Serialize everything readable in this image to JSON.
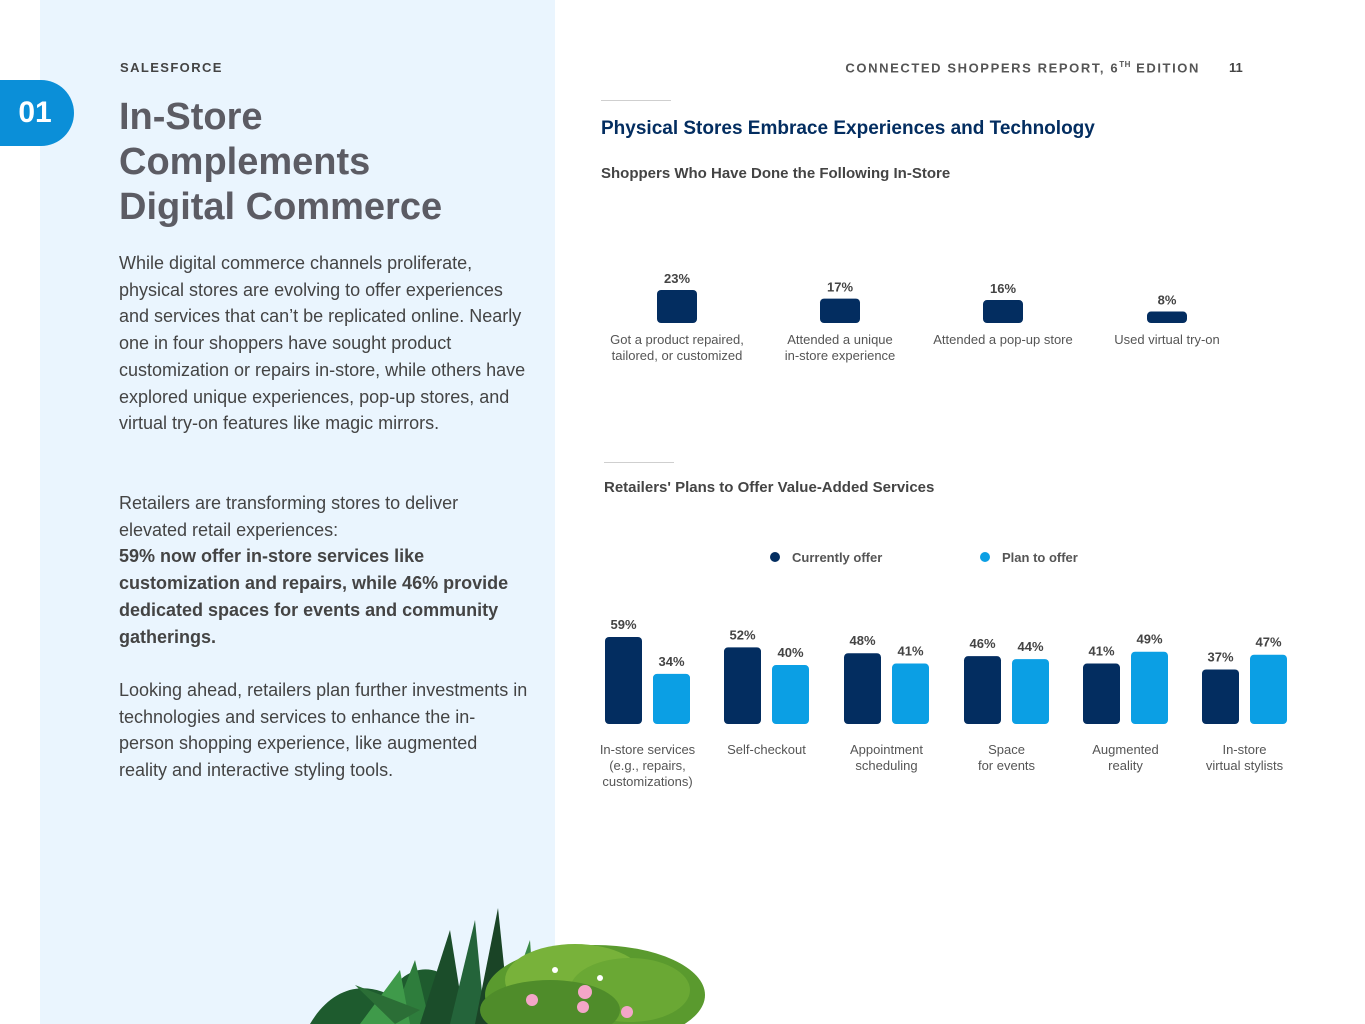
{
  "header": {
    "brand": "SALESFORCE",
    "report_title_main": "CONNECTED SHOPPERS REPORT, 6",
    "report_title_sup": "TH",
    "report_title_end": " EDITION",
    "page_number": "11",
    "section_number": "01"
  },
  "left": {
    "heading": [
      "In-Store",
      "Complements",
      "Digital Commerce"
    ],
    "para1": "While digital commerce channels proliferate, physical stores are evolving to offer experiences and services that can’t be replicated online. Nearly one in four shoppers have sought product customization or repairs in-store, while others have explored unique experiences, pop-up stores, and virtual try-on features like magic mirrors.",
    "para2_intro": "Retailers are transforming stores to deliver elevated retail experiences:",
    "para2_bold": "59% now offer in-store services like customization and repairs, while 46% provide dedicated spaces for events and community gatherings.",
    "para3": "Looking ahead, retailers plan further investments in technologies and services to enhance the in-person shopping experience, like augmented reality and interactive styling tools."
  },
  "charts_header": {
    "title": "Physical Stores Embrace Experiences and Technology"
  },
  "colors": {
    "navy": "#032d60",
    "blue": "#0b9fe4",
    "badge": "#0b8fd8",
    "panel": "#eaf5fe"
  },
  "chart_data": [
    {
      "type": "bar",
      "subtitle": "Shoppers Who Have Done the Following In-Store",
      "categories": [
        [
          "Got a product repaired,",
          "tailored, or customized"
        ],
        [
          "Attended a unique",
          "in-store experience"
        ],
        [
          "Attended a pop-up store"
        ],
        [
          "Used virtual try-on"
        ]
      ],
      "values": [
        23,
        17,
        16,
        8
      ],
      "value_labels": [
        "23%",
        "17%",
        "16%",
        "8%"
      ],
      "unit": "%",
      "grid": false,
      "legend": "none"
    },
    {
      "type": "bar",
      "subtitle": "Retailers' Plans to Offer Value-Added Services",
      "categories": [
        [
          "In-store services",
          "(e.g., repairs,",
          "customizations)"
        ],
        [
          "Self-checkout"
        ],
        [
          "Appointment",
          "scheduling"
        ],
        [
          "Space",
          "for events"
        ],
        [
          "Augmented",
          "reality"
        ],
        [
          "In-store",
          "virtual stylists"
        ]
      ],
      "series": [
        {
          "name": "Currently offer",
          "values": [
            59,
            52,
            48,
            46,
            41,
            37
          ],
          "labels": [
            "59%",
            "52%",
            "48%",
            "46%",
            "41%",
            "37%"
          ]
        },
        {
          "name": "Plan to offer",
          "values": [
            34,
            40,
            41,
            44,
            49,
            47
          ],
          "labels": [
            "34%",
            "40%",
            "41%",
            "44%",
            "49%",
            "47%"
          ]
        }
      ],
      "unit": "%",
      "grid": false,
      "legend": "top-center"
    }
  ]
}
